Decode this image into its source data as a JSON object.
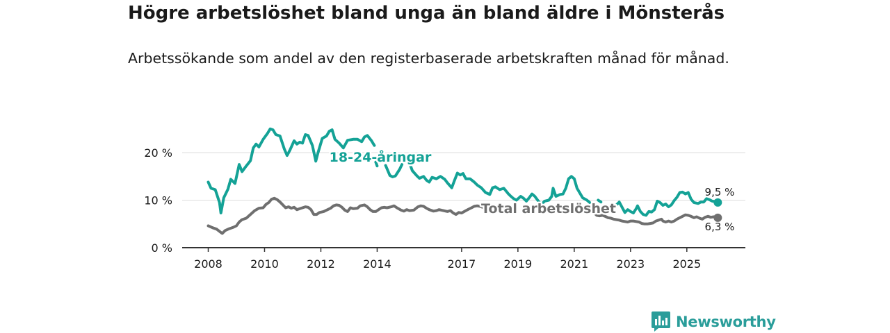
{
  "title": "Högre arbetslöshet bland unga än bland äldre i Mönsterås",
  "subtitle": "Arbetssökande som andel av den registerbaserade arbetskraften månad för månad.",
  "brand": "Newsworthy",
  "colors": {
    "youth": "#14a296",
    "total": "#6f6f6f",
    "grid": "#dcdcdc",
    "axis": "#333333",
    "brand": "#2a9d9a"
  },
  "chart_data": {
    "type": "line",
    "title": "Högre arbetslöshet bland unga än bland äldre i Mönsterås",
    "xlabel": "",
    "ylabel": "",
    "ylim": [
      0,
      28
    ],
    "xlim": [
      2007.85,
      2026.9
    ],
    "grid": true,
    "yticks": [
      0,
      10,
      20
    ],
    "ytick_labels": [
      "0 %",
      "10 %",
      "20 %"
    ],
    "xticks": [
      2008,
      2010,
      2012,
      2014,
      2017,
      2019,
      2021,
      2023,
      2025
    ],
    "xtick_labels": [
      "2008",
      "2010",
      "2012",
      "2014",
      "2017",
      "2019",
      "2021",
      "2023",
      "2025"
    ],
    "series": [
      {
        "name": "18-24-åringar",
        "label": "18-24-åringar",
        "end_label": "9,5 %",
        "points": [
          [
            2008.0,
            13.8
          ],
          [
            2008.1,
            12.5
          ],
          [
            2008.25,
            12.2
          ],
          [
            2008.4,
            9.5
          ],
          [
            2008.45,
            7.3
          ],
          [
            2008.55,
            10.5
          ],
          [
            2008.7,
            12.3
          ],
          [
            2008.8,
            14.4
          ],
          [
            2008.95,
            13.5
          ],
          [
            2009.1,
            17.5
          ],
          [
            2009.2,
            16.0
          ],
          [
            2009.35,
            17.2
          ],
          [
            2009.5,
            18.3
          ],
          [
            2009.6,
            21.0
          ],
          [
            2009.7,
            21.8
          ],
          [
            2009.8,
            21.2
          ],
          [
            2009.95,
            22.8
          ],
          [
            2010.1,
            24.0
          ],
          [
            2010.2,
            25.0
          ],
          [
            2010.3,
            24.8
          ],
          [
            2010.4,
            23.8
          ],
          [
            2010.55,
            23.5
          ],
          [
            2010.7,
            20.8
          ],
          [
            2010.8,
            19.4
          ],
          [
            2010.9,
            20.5
          ],
          [
            2011.05,
            22.5
          ],
          [
            2011.15,
            21.8
          ],
          [
            2011.25,
            22.2
          ],
          [
            2011.35,
            22.0
          ],
          [
            2011.45,
            23.8
          ],
          [
            2011.55,
            23.6
          ],
          [
            2011.7,
            21.5
          ],
          [
            2011.82,
            18.2
          ],
          [
            2011.9,
            20.0
          ],
          [
            2012.05,
            23.0
          ],
          [
            2012.2,
            23.5
          ],
          [
            2012.3,
            24.5
          ],
          [
            2012.4,
            24.8
          ],
          [
            2012.5,
            22.8
          ],
          [
            2012.65,
            22.0
          ],
          [
            2012.8,
            21.0
          ],
          [
            2012.95,
            22.6
          ],
          [
            2013.15,
            22.8
          ],
          [
            2013.3,
            22.8
          ],
          [
            2013.45,
            22.3
          ],
          [
            2013.55,
            23.3
          ],
          [
            2013.65,
            23.6
          ],
          [
            2013.8,
            22.5
          ],
          [
            2013.9,
            21.5
          ],
          null,
          [
            2013.95,
            18.0
          ],
          [
            2014.0,
            17.2
          ],
          null,
          [
            2014.3,
            17.3
          ],
          [
            2014.45,
            15.2
          ],
          [
            2014.55,
            14.9
          ],
          [
            2014.65,
            15.1
          ],
          [
            2014.8,
            16.5
          ],
          [
            2014.88,
            17.5
          ],
          null,
          [
            2015.15,
            17.8
          ],
          [
            2015.25,
            16.2
          ],
          [
            2015.4,
            15.2
          ],
          [
            2015.5,
            14.6
          ],
          [
            2015.65,
            15.0
          ],
          [
            2015.75,
            14.2
          ],
          [
            2015.85,
            13.8
          ],
          [
            2015.95,
            14.8
          ],
          [
            2016.1,
            14.5
          ],
          [
            2016.25,
            15.0
          ],
          [
            2016.4,
            14.4
          ],
          [
            2016.5,
            13.6
          ],
          [
            2016.65,
            12.6
          ],
          [
            2016.75,
            14.2
          ],
          [
            2016.85,
            15.7
          ],
          [
            2016.95,
            15.3
          ],
          [
            2017.05,
            15.6
          ],
          [
            2017.15,
            14.5
          ],
          [
            2017.3,
            14.5
          ],
          [
            2017.45,
            13.8
          ],
          [
            2017.55,
            13.2
          ],
          [
            2017.7,
            12.6
          ],
          [
            2017.85,
            11.6
          ],
          [
            2018.0,
            11.2
          ],
          [
            2018.1,
            12.6
          ],
          [
            2018.2,
            12.8
          ],
          [
            2018.35,
            12.2
          ],
          [
            2018.5,
            12.5
          ],
          [
            2018.65,
            11.4
          ],
          [
            2018.75,
            10.8
          ],
          [
            2018.85,
            10.3
          ],
          [
            2018.95,
            10.0
          ],
          [
            2019.1,
            10.8
          ],
          [
            2019.2,
            10.4
          ],
          [
            2019.3,
            9.8
          ],
          [
            2019.4,
            10.5
          ],
          [
            2019.5,
            11.3
          ],
          [
            2019.6,
            10.8
          ],
          [
            2019.75,
            9.6
          ],
          [
            2019.85,
            9.2
          ],
          [
            2019.95,
            9.8
          ],
          [
            2020.1,
            10.0
          ],
          [
            2020.2,
            10.8
          ],
          [
            2020.25,
            12.5
          ],
          [
            2020.35,
            10.8
          ],
          [
            2020.5,
            11.2
          ],
          [
            2020.6,
            11.3
          ],
          [
            2020.7,
            12.5
          ],
          [
            2020.8,
            14.5
          ],
          [
            2020.9,
            15.0
          ],
          [
            2021.0,
            14.5
          ],
          [
            2021.1,
            12.5
          ],
          [
            2021.2,
            11.5
          ],
          [
            2021.3,
            10.5
          ],
          [
            2021.45,
            10.0
          ],
          [
            2021.55,
            9.5
          ],
          null,
          [
            2021.85,
            10.0
          ],
          [
            2021.95,
            9.6
          ],
          null,
          [
            2022.25,
            8.4
          ],
          [
            2022.3,
            8.0
          ],
          [
            2022.4,
            8.3
          ],
          [
            2022.5,
            9.0
          ],
          [
            2022.6,
            9.6
          ],
          [
            2022.7,
            8.5
          ],
          [
            2022.8,
            7.4
          ],
          [
            2022.9,
            8.0
          ],
          [
            2023.0,
            7.6
          ],
          [
            2023.1,
            7.3
          ],
          [
            2023.2,
            8.2
          ],
          [
            2023.25,
            8.8
          ],
          [
            2023.35,
            7.6
          ],
          [
            2023.45,
            7.0
          ],
          [
            2023.55,
            6.8
          ],
          [
            2023.65,
            7.6
          ],
          [
            2023.75,
            7.5
          ],
          [
            2023.85,
            8.0
          ],
          [
            2023.95,
            9.8
          ],
          [
            2024.05,
            9.5
          ],
          [
            2024.15,
            8.9
          ],
          [
            2024.25,
            9.2
          ],
          [
            2024.35,
            8.6
          ],
          [
            2024.45,
            9.0
          ],
          [
            2024.55,
            9.9
          ],
          [
            2024.65,
            10.6
          ],
          [
            2024.75,
            11.6
          ],
          [
            2024.85,
            11.7
          ],
          [
            2024.95,
            11.3
          ],
          [
            2025.05,
            11.6
          ],
          [
            2025.15,
            10.2
          ],
          [
            2025.25,
            9.5
          ],
          [
            2025.4,
            9.3
          ],
          [
            2025.5,
            9.6
          ],
          [
            2025.6,
            9.6
          ],
          [
            2025.7,
            10.3
          ],
          [
            2025.8,
            10.1
          ],
          [
            2025.9,
            9.8
          ],
          [
            2026.0,
            9.7
          ],
          [
            2026.1,
            9.5
          ]
        ]
      },
      {
        "name": "Total arbetslöshet",
        "label": "Total arbetslöshet",
        "end_label": "6,3 %",
        "points": [
          [
            2008.0,
            4.6
          ],
          [
            2008.15,
            4.2
          ],
          [
            2008.3,
            3.9
          ],
          [
            2008.45,
            3.2
          ],
          [
            2008.5,
            3.0
          ],
          [
            2008.6,
            3.6
          ],
          [
            2008.75,
            4.0
          ],
          [
            2008.9,
            4.3
          ],
          [
            2009.0,
            4.6
          ],
          [
            2009.1,
            5.4
          ],
          [
            2009.2,
            5.9
          ],
          [
            2009.35,
            6.2
          ],
          [
            2009.5,
            7.0
          ],
          [
            2009.65,
            7.8
          ],
          [
            2009.8,
            8.3
          ],
          [
            2009.95,
            8.4
          ],
          [
            2010.05,
            9.1
          ],
          [
            2010.15,
            9.5
          ],
          [
            2010.25,
            10.2
          ],
          [
            2010.35,
            10.4
          ],
          [
            2010.45,
            10.1
          ],
          [
            2010.55,
            9.6
          ],
          [
            2010.65,
            9.0
          ],
          [
            2010.75,
            8.4
          ],
          [
            2010.85,
            8.6
          ],
          [
            2010.95,
            8.3
          ],
          [
            2011.05,
            8.5
          ],
          [
            2011.15,
            8.0
          ],
          [
            2011.3,
            8.3
          ],
          [
            2011.45,
            8.6
          ],
          [
            2011.55,
            8.5
          ],
          [
            2011.65,
            8.0
          ],
          [
            2011.75,
            7.0
          ],
          [
            2011.85,
            7.0
          ],
          [
            2011.95,
            7.4
          ],
          [
            2012.1,
            7.6
          ],
          [
            2012.2,
            7.9
          ],
          [
            2012.35,
            8.3
          ],
          [
            2012.45,
            8.8
          ],
          [
            2012.55,
            9.0
          ],
          [
            2012.65,
            8.9
          ],
          [
            2012.75,
            8.5
          ],
          [
            2012.85,
            7.9
          ],
          [
            2012.95,
            7.6
          ],
          [
            2013.05,
            8.4
          ],
          [
            2013.15,
            8.2
          ],
          [
            2013.3,
            8.3
          ],
          [
            2013.4,
            8.8
          ],
          [
            2013.55,
            9.0
          ],
          [
            2013.65,
            8.6
          ],
          [
            2013.75,
            8.0
          ],
          [
            2013.85,
            7.6
          ],
          [
            2013.95,
            7.6
          ],
          [
            2014.05,
            8.0
          ],
          [
            2014.15,
            8.4
          ],
          [
            2014.25,
            8.5
          ],
          [
            2014.35,
            8.4
          ],
          [
            2014.5,
            8.6
          ],
          [
            2014.6,
            8.8
          ],
          [
            2014.7,
            8.4
          ],
          [
            2014.85,
            7.9
          ],
          [
            2014.95,
            7.7
          ],
          [
            2015.05,
            8.0
          ],
          [
            2015.15,
            7.8
          ],
          [
            2015.3,
            7.9
          ],
          [
            2015.45,
            8.6
          ],
          [
            2015.55,
            8.8
          ],
          [
            2015.65,
            8.7
          ],
          [
            2015.75,
            8.3
          ],
          [
            2015.85,
            8.0
          ],
          [
            2016.0,
            7.7
          ],
          [
            2016.1,
            7.8
          ],
          [
            2016.2,
            8.0
          ],
          [
            2016.35,
            7.8
          ],
          [
            2016.5,
            7.6
          ],
          [
            2016.6,
            7.8
          ],
          [
            2016.7,
            7.3
          ],
          [
            2016.8,
            7.0
          ],
          [
            2016.9,
            7.4
          ],
          [
            2017.0,
            7.3
          ],
          [
            2017.15,
            7.8
          ],
          [
            2017.25,
            8.1
          ],
          [
            2017.35,
            8.4
          ],
          [
            2017.45,
            8.7
          ],
          [
            2017.55,
            8.8
          ],
          [
            2017.65,
            8.7
          ],
          [
            2017.75,
            8.5
          ],
          [
            2017.85,
            8.3
          ],
          null,
          [
            2021.6,
            8.0
          ],
          [
            2021.7,
            7.4
          ],
          [
            2021.8,
            6.8
          ],
          [
            2021.9,
            6.7
          ],
          [
            2022.0,
            6.8
          ],
          [
            2022.1,
            6.6
          ],
          [
            2022.2,
            6.3
          ],
          [
            2022.3,
            6.2
          ],
          [
            2022.4,
            6.0
          ],
          [
            2022.5,
            5.9
          ],
          [
            2022.6,
            5.8
          ],
          [
            2022.7,
            5.6
          ],
          [
            2022.8,
            5.5
          ],
          [
            2022.9,
            5.4
          ],
          [
            2023.0,
            5.6
          ],
          [
            2023.1,
            5.6
          ],
          [
            2023.2,
            5.5
          ],
          [
            2023.3,
            5.4
          ],
          [
            2023.4,
            5.1
          ],
          [
            2023.5,
            5.0
          ],
          [
            2023.6,
            5.0
          ],
          [
            2023.7,
            5.1
          ],
          [
            2023.8,
            5.2
          ],
          [
            2023.9,
            5.6
          ],
          [
            2024.0,
            5.8
          ],
          [
            2024.1,
            6.0
          ],
          [
            2024.15,
            5.6
          ],
          [
            2024.25,
            5.4
          ],
          [
            2024.35,
            5.6
          ],
          [
            2024.45,
            5.4
          ],
          [
            2024.55,
            5.6
          ],
          [
            2024.65,
            6.0
          ],
          [
            2024.75,
            6.3
          ],
          [
            2024.85,
            6.6
          ],
          [
            2024.95,
            6.9
          ],
          [
            2025.05,
            6.8
          ],
          [
            2025.15,
            6.6
          ],
          [
            2025.25,
            6.3
          ],
          [
            2025.35,
            6.5
          ],
          [
            2025.45,
            6.2
          ],
          [
            2025.55,
            6.0
          ],
          [
            2025.65,
            6.4
          ],
          [
            2025.75,
            6.6
          ],
          [
            2025.85,
            6.4
          ],
          [
            2025.95,
            6.5
          ],
          [
            2026.05,
            6.5
          ],
          [
            2026.1,
            6.3
          ]
        ]
      }
    ]
  }
}
